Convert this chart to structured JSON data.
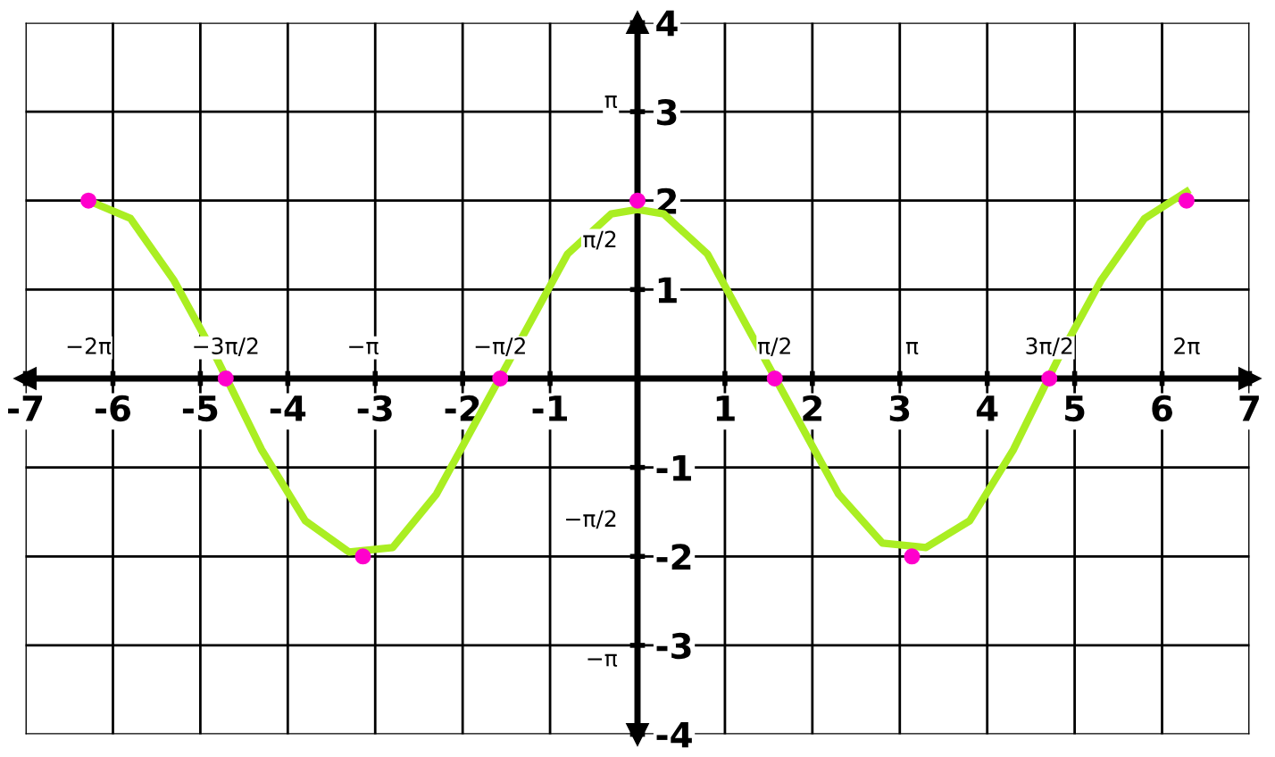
{
  "chart_data": {
    "type": "line",
    "xlim": [
      -7,
      7
    ],
    "ylim": [
      -4,
      4
    ],
    "xticks": [
      -7,
      -6,
      -5,
      -4,
      -3,
      -2,
      -1,
      1,
      2,
      3,
      4,
      5,
      6,
      7
    ],
    "yticks": [
      -4,
      -3,
      -2,
      -1,
      1,
      2,
      3,
      4
    ],
    "grid": true,
    "series": [
      {
        "color": "#aaee22",
        "x": [
          -6.28,
          -5.8,
          -5.3,
          -4.8,
          -4.3,
          -3.8,
          -3.3,
          -2.8,
          -2.3,
          -1.8,
          -1.3,
          -0.8,
          -0.3,
          0,
          0.3,
          0.8,
          1.3,
          1.8,
          2.3,
          2.8,
          3.3,
          3.8,
          4.3,
          4.8,
          5.3,
          5.8,
          6.28
        ],
        "values": [
          2.0,
          1.8,
          1.1,
          0.2,
          -0.8,
          -1.6,
          -1.95,
          -1.9,
          -1.3,
          -0.4,
          0.5,
          1.4,
          1.85,
          1.9,
          1.85,
          1.4,
          0.5,
          -0.4,
          -1.3,
          -1.85,
          -1.9,
          -1.6,
          -0.8,
          0.2,
          1.1,
          1.8,
          2.1
        ]
      },
      {
        "type": "scatter",
        "color": "#ff00cc",
        "x": [
          -6.28,
          -4.71,
          -3.14,
          -1.57,
          0,
          1.57,
          3.14,
          4.71,
          6.28
        ],
        "values": [
          2,
          0,
          -2,
          0,
          2,
          0,
          -2,
          0,
          2
        ]
      }
    ],
    "x2lim": [
      -7,
      7
    ],
    "x2ticks": [
      {
        "value": -6.28,
        "label": "−2π"
      },
      {
        "value": -4.71,
        "label": "−3π/2"
      },
      {
        "value": -3.14,
        "label": "−π"
      },
      {
        "value": -1.57,
        "label": "−π/2"
      },
      {
        "value": 1.57,
        "label": "π/2"
      },
      {
        "value": 3.14,
        "label": "π"
      },
      {
        "value": 4.71,
        "label": "3π/2"
      },
      {
        "value": 6.28,
        "label": "2π"
      }
    ],
    "y2lim": [
      -4,
      4
    ],
    "y2ticks": [
      {
        "value": -3.14,
        "label": "−π"
      },
      {
        "value": -1.57,
        "label": "−π/2"
      },
      {
        "value": 1.57,
        "label": "π/2"
      },
      {
        "value": 3.14,
        "label": "π"
      }
    ]
  }
}
